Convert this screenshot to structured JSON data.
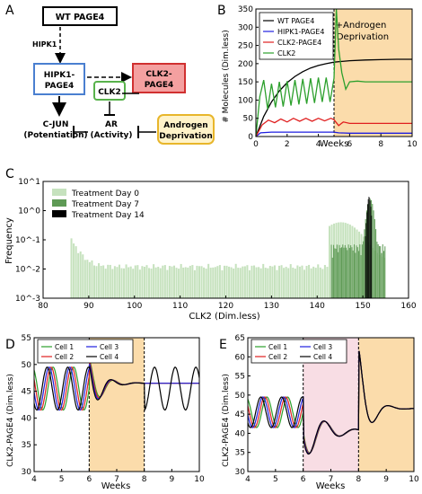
{
  "panel_labels": {
    "a": "A",
    "b": "B",
    "c": "C",
    "d": "D",
    "e": "E"
  },
  "diagram": {
    "wt_page4": "WT PAGE4",
    "hipk1": "HIPK1",
    "hipk1_page4": [
      "HIPK1-",
      "PAGE4"
    ],
    "clk2_page4": [
      "CLK2-",
      "PAGE4"
    ],
    "clk2": "CLK2",
    "cjun": [
      "C-JUN",
      "(Potentiation)"
    ],
    "ar": [
      "AR",
      "(Activity)"
    ],
    "androgen": [
      "Androgen",
      "Deprivation"
    ]
  },
  "colors": {
    "orange_region": "#fbdcab",
    "pink_region": "#f8dde4",
    "hipk_box": "#4a7fd0",
    "clk2p4_fill": "#f4a0a0",
    "clk2p4_stroke": "#d03030",
    "clk2_stroke": "#58b24b",
    "androgen_fill": "#fff3c9",
    "androgen_stroke": "#e8b62b",
    "green_light": "#c6e2be",
    "green_mid": "#5e9a55",
    "green_dark": "#000000"
  },
  "chart_data": [
    {
      "panel": "B",
      "type": "line",
      "ylabel": "# Molecules (Dim.less)",
      "xlabel": "Weeks",
      "xlim": [
        0,
        10
      ],
      "ylim": [
        0,
        350
      ],
      "xticks": [
        "0",
        "2",
        "4",
        "6",
        "8",
        "10"
      ],
      "yticks": [
        "0",
        "50",
        "100",
        "150",
        "200",
        "250",
        "300",
        "350"
      ],
      "annotation": [
        "+Androgen",
        "Deprivation"
      ],
      "treatment_start": 5,
      "legend": "top-left",
      "series": [
        {
          "name": "WT PAGE4",
          "color": "#000000",
          "x": [
            0,
            0.5,
            1,
            1.5,
            2,
            2.5,
            3,
            3.5,
            4,
            4.5,
            5,
            6,
            7,
            8,
            9,
            10
          ],
          "y": [
            0,
            55,
            95,
            125,
            148,
            165,
            178,
            188,
            195,
            200,
            204,
            208,
            210,
            211,
            212,
            212
          ]
        },
        {
          "name": "HIPK1-PAGE4",
          "color": "#1f1fe0",
          "x": [
            0,
            0.3,
            1,
            2,
            3,
            4,
            5,
            5.3,
            6,
            7,
            8,
            9,
            10
          ],
          "y": [
            0,
            10,
            12,
            12,
            12,
            12,
            12,
            10,
            9,
            9,
            9,
            9,
            9
          ]
        },
        {
          "name": "CLK2-PAGE4",
          "color": "#e01f1f",
          "x": [
            0,
            0.4,
            0.8,
            1.2,
            1.6,
            2,
            2.4,
            2.8,
            3.2,
            3.6,
            4,
            4.4,
            4.8,
            5,
            5.3,
            5.6,
            6,
            7,
            8,
            9,
            10
          ],
          "y": [
            0,
            32,
            45,
            38,
            48,
            40,
            50,
            42,
            50,
            42,
            50,
            43,
            50,
            46,
            30,
            40,
            36,
            36,
            36,
            36,
            36
          ]
        },
        {
          "name": "CLK2",
          "color": "#2ca02c",
          "x": [
            0,
            0.25,
            0.5,
            0.75,
            1,
            1.25,
            1.5,
            1.75,
            2,
            2.25,
            2.5,
            2.75,
            3,
            3.25,
            3.5,
            3.75,
            4,
            4.25,
            4.5,
            4.75,
            5,
            5.15,
            5.3,
            5.5,
            5.75,
            6,
            6.5,
            7,
            8,
            9,
            10
          ],
          "y": [
            0,
            110,
            155,
            75,
            145,
            80,
            150,
            82,
            152,
            85,
            155,
            88,
            158,
            90,
            160,
            92,
            162,
            95,
            162,
            95,
            160,
            350,
            240,
            175,
            130,
            150,
            152,
            150,
            150,
            150,
            150
          ]
        }
      ]
    },
    {
      "panel": "C",
      "type": "bar",
      "ylabel": "Frequency",
      "xlabel": "CLK2 (Dim.less)",
      "xlim": [
        80,
        160
      ],
      "yscale": "log",
      "ylim": [
        0.001,
        10
      ],
      "xticks": [
        "80",
        "90",
        "100",
        "110",
        "120",
        "130",
        "140",
        "150",
        "160"
      ],
      "yticks": [
        "10^-3",
        "10^-2",
        "10^-1",
        "10^0",
        "10^1"
      ],
      "legend": "top-left",
      "series": [
        {
          "name": "Treatment Day 0",
          "color": "#c6e2be",
          "range": [
            86,
            155
          ],
          "baseline": 0.012,
          "start_peak": 0.1,
          "end_peak": 0.4
        },
        {
          "name": "Treatment Day 7",
          "color": "#5e9a55",
          "range": [
            143,
            155
          ],
          "baseline": 0.04,
          "peak_at": 151.5,
          "peak": 2.5
        },
        {
          "name": "Treatment Day 14",
          "color": "#000000",
          "range": [
            150.5,
            152
          ],
          "peak_at": 151.3,
          "peak": 3
        }
      ]
    },
    {
      "panel": "D",
      "type": "line",
      "ylabel": "CLK2-PAGE4 (Dim.less)",
      "xlabel": "Weeks",
      "xlim": [
        4,
        10
      ],
      "ylim": [
        30,
        55
      ],
      "xticks": [
        "4",
        "5",
        "6",
        "7",
        "8",
        "9",
        "10"
      ],
      "yticks": [
        "30",
        "35",
        "40",
        "45",
        "50",
        "55"
      ],
      "treatment_window": [
        6,
        8
      ],
      "legend": "top-left",
      "series": [
        {
          "name": "Cell 1",
          "color": "#2ca02c",
          "phase": 0.0
        },
        {
          "name": "Cell 2",
          "color": "#e01f1f",
          "phase": 0.6
        },
        {
          "name": "Cell 3",
          "color": "#1f1fe0",
          "phase": 1.2
        },
        {
          "name": "Cell 4",
          "color": "#000000",
          "phase": 1.8
        }
      ]
    },
    {
      "panel": "E",
      "type": "line",
      "ylabel": "CLK2-PAGE4 (Dim.less)",
      "xlabel": "Weeks",
      "xlim": [
        4,
        10
      ],
      "ylim": [
        30,
        65
      ],
      "xticks": [
        "4",
        "5",
        "6",
        "7",
        "8",
        "9",
        "10"
      ],
      "yticks": [
        "30",
        "35",
        "40",
        "45",
        "50",
        "55",
        "60",
        "65"
      ],
      "treatment_window": [
        6,
        8
      ],
      "legend": "top-left",
      "series": [
        {
          "name": "Cell 1",
          "color": "#2ca02c",
          "phase": 0.0
        },
        {
          "name": "Cell 2",
          "color": "#e01f1f",
          "phase": 0.6
        },
        {
          "name": "Cell 3",
          "color": "#1f1fe0",
          "phase": 1.2
        },
        {
          "name": "Cell 4",
          "color": "#000000",
          "phase": 1.8
        }
      ]
    }
  ]
}
